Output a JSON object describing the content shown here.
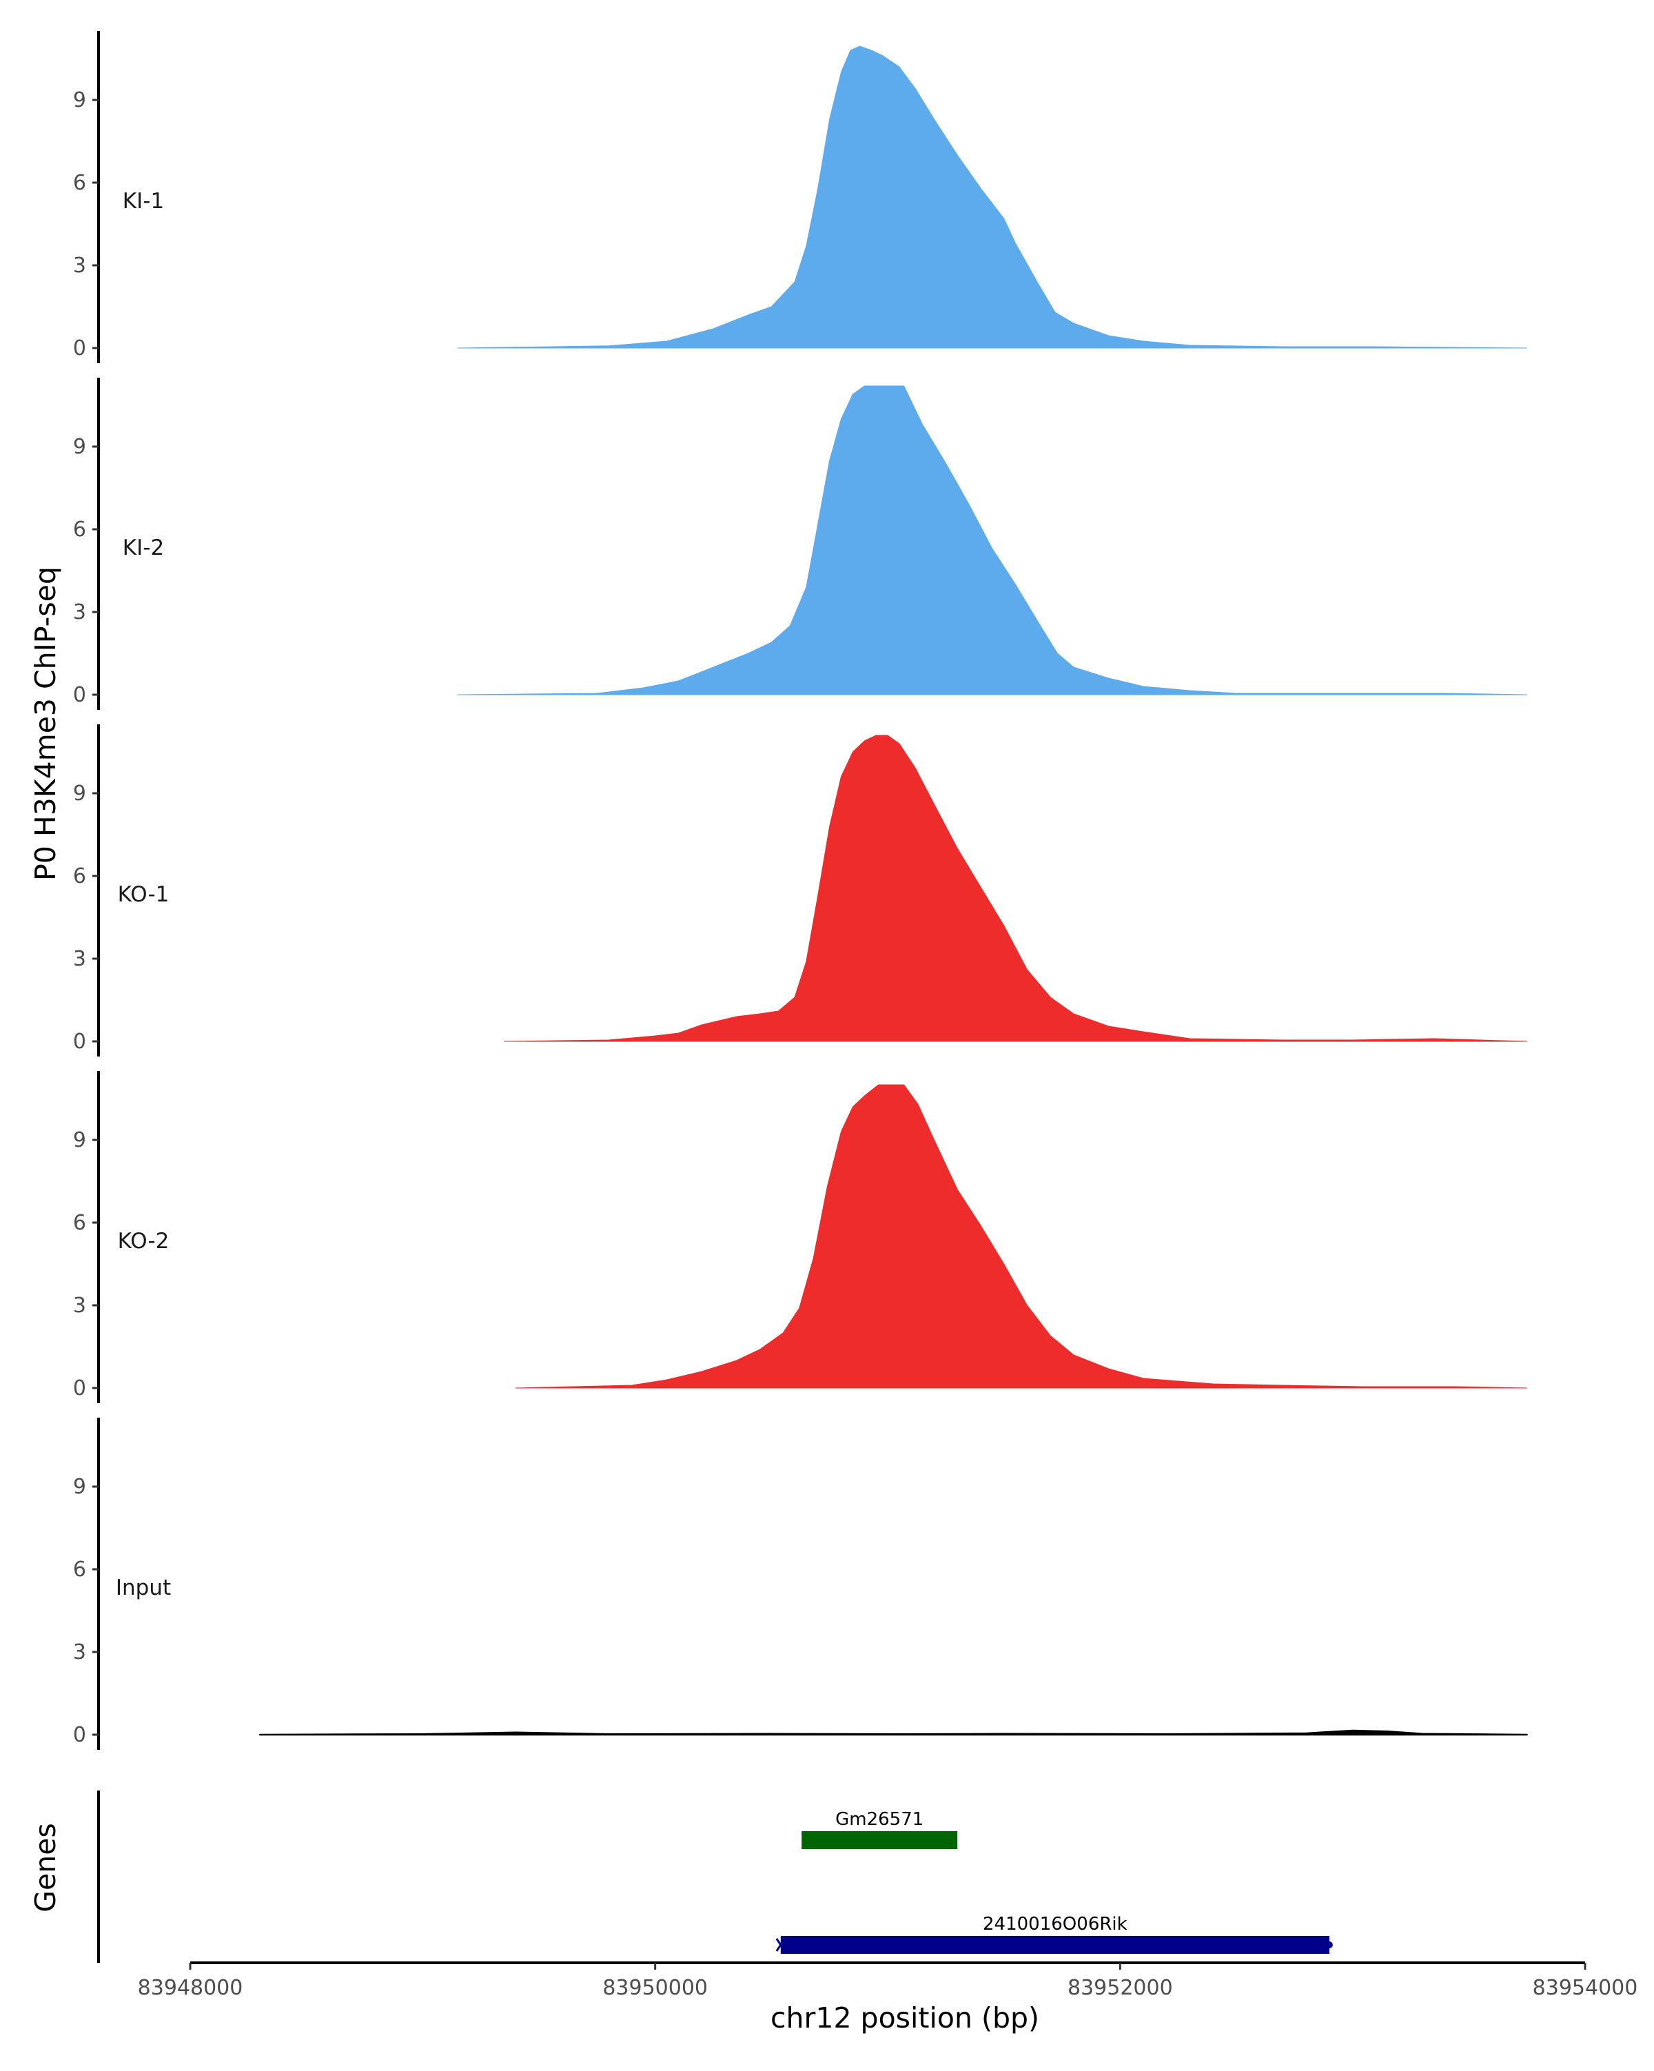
{
  "chart_data": {
    "type": "area",
    "chromosome": "chr12",
    "ylabel": "P0 H3K4me3 ChIP-seq",
    "xlabel": "chr12 position (bp)",
    "genes_label": "Genes",
    "xlim": [
      83948000,
      83954000
    ],
    "x_ticks": [
      83948000,
      83950000,
      83952000,
      83954000
    ],
    "x_tick_labels": [
      "83948000",
      "83950000",
      "83952000",
      "83954000"
    ],
    "ylim": [
      0,
      11.2
    ],
    "y_ticks": [
      0,
      3,
      6,
      9
    ],
    "y_tick_labels": [
      "0",
      "3",
      "6",
      "9"
    ],
    "tracks": [
      {
        "name": "KI-1",
        "color": "#5DABEC",
        "points": [
          [
            83949150,
            0
          ],
          [
            83949800,
            0.08
          ],
          [
            83950050,
            0.25
          ],
          [
            83950250,
            0.7
          ],
          [
            83950400,
            1.2
          ],
          [
            83950500,
            1.5
          ],
          [
            83950600,
            2.4
          ],
          [
            83950650,
            3.7
          ],
          [
            83950700,
            5.8
          ],
          [
            83950750,
            8.3
          ],
          [
            83950800,
            10.0
          ],
          [
            83950840,
            10.8
          ],
          [
            83950880,
            10.95
          ],
          [
            83950930,
            10.8
          ],
          [
            83950980,
            10.6
          ],
          [
            83951050,
            10.2
          ],
          [
            83951120,
            9.4
          ],
          [
            83951200,
            8.3
          ],
          [
            83951300,
            7.0
          ],
          [
            83951400,
            5.8
          ],
          [
            83951500,
            4.7
          ],
          [
            83951550,
            3.8
          ],
          [
            83951650,
            2.3
          ],
          [
            83951720,
            1.3
          ],
          [
            83951800,
            0.9
          ],
          [
            83951950,
            0.45
          ],
          [
            83952100,
            0.25
          ],
          [
            83952300,
            0.1
          ],
          [
            83952700,
            0.05
          ],
          [
            83953100,
            0.05
          ],
          [
            83953500,
            0.02
          ],
          [
            83953750,
            0
          ]
        ]
      },
      {
        "name": "KI-2",
        "color": "#5DABEC",
        "points": [
          [
            83949150,
            0
          ],
          [
            83949750,
            0.05
          ],
          [
            83949950,
            0.25
          ],
          [
            83950100,
            0.5
          ],
          [
            83950250,
            1.0
          ],
          [
            83950400,
            1.5
          ],
          [
            83950500,
            1.9
          ],
          [
            83950580,
            2.5
          ],
          [
            83950650,
            3.9
          ],
          [
            83950700,
            6.2
          ],
          [
            83950750,
            8.5
          ],
          [
            83950800,
            10.0
          ],
          [
            83950850,
            10.9
          ],
          [
            83950900,
            11.2
          ],
          [
            83951070,
            11.2
          ],
          [
            83951150,
            9.8
          ],
          [
            83951250,
            8.4
          ],
          [
            83951350,
            6.9
          ],
          [
            83951450,
            5.3
          ],
          [
            83951550,
            4.0
          ],
          [
            83951650,
            2.6
          ],
          [
            83951730,
            1.5
          ],
          [
            83951800,
            1.0
          ],
          [
            83951950,
            0.6
          ],
          [
            83952100,
            0.3
          ],
          [
            83952300,
            0.15
          ],
          [
            83952500,
            0.05
          ],
          [
            83953000,
            0.05
          ],
          [
            83953400,
            0.05
          ],
          [
            83953750,
            0
          ]
        ]
      },
      {
        "name": "KO-1",
        "color": "#EE2C2C",
        "points": [
          [
            83949350,
            0
          ],
          [
            83949800,
            0.05
          ],
          [
            83950000,
            0.2
          ],
          [
            83950100,
            0.3
          ],
          [
            83950200,
            0.6
          ],
          [
            83950350,
            0.9
          ],
          [
            83950450,
            1.0
          ],
          [
            83950530,
            1.1
          ],
          [
            83950600,
            1.6
          ],
          [
            83950650,
            2.9
          ],
          [
            83950700,
            5.3
          ],
          [
            83950750,
            7.8
          ],
          [
            83950800,
            9.6
          ],
          [
            83950850,
            10.5
          ],
          [
            83950900,
            10.9
          ],
          [
            83950950,
            11.1
          ],
          [
            83951000,
            11.1
          ],
          [
            83951050,
            10.8
          ],
          [
            83951120,
            9.9
          ],
          [
            83951200,
            8.6
          ],
          [
            83951300,
            7.0
          ],
          [
            83951400,
            5.6
          ],
          [
            83951500,
            4.2
          ],
          [
            83951600,
            2.6
          ],
          [
            83951700,
            1.6
          ],
          [
            83951800,
            1.0
          ],
          [
            83951950,
            0.55
          ],
          [
            83952100,
            0.35
          ],
          [
            83952300,
            0.1
          ],
          [
            83952700,
            0.05
          ],
          [
            83953000,
            0.05
          ],
          [
            83953350,
            0.1
          ],
          [
            83953750,
            0
          ]
        ]
      },
      {
        "name": "KO-2",
        "color": "#EE2C2C",
        "points": [
          [
            83949400,
            0
          ],
          [
            83949900,
            0.1
          ],
          [
            83950050,
            0.3
          ],
          [
            83950200,
            0.6
          ],
          [
            83950350,
            1.0
          ],
          [
            83950450,
            1.4
          ],
          [
            83950550,
            2.0
          ],
          [
            83950620,
            2.9
          ],
          [
            83950680,
            4.7
          ],
          [
            83950740,
            7.3
          ],
          [
            83950800,
            9.3
          ],
          [
            83950850,
            10.2
          ],
          [
            83950900,
            10.6
          ],
          [
            83950960,
            11.0
          ],
          [
            83951070,
            11.0
          ],
          [
            83951130,
            10.3
          ],
          [
            83951200,
            9.0
          ],
          [
            83951300,
            7.2
          ],
          [
            83951400,
            5.9
          ],
          [
            83951500,
            4.5
          ],
          [
            83951600,
            3.0
          ],
          [
            83951700,
            1.9
          ],
          [
            83951800,
            1.2
          ],
          [
            83951950,
            0.7
          ],
          [
            83952100,
            0.35
          ],
          [
            83952400,
            0.15
          ],
          [
            83952700,
            0.1
          ],
          [
            83953050,
            0.05
          ],
          [
            83953450,
            0.05
          ],
          [
            83953750,
            0
          ]
        ]
      },
      {
        "name": "Input",
        "color": "#000000",
        "points": [
          [
            83948300,
            0
          ],
          [
            83949000,
            0.02
          ],
          [
            83949400,
            0.08
          ],
          [
            83949800,
            0.02
          ],
          [
            83950500,
            0.03
          ],
          [
            83951000,
            0.02
          ],
          [
            83951500,
            0.03
          ],
          [
            83952200,
            0.02
          ],
          [
            83952800,
            0.05
          ],
          [
            83953000,
            0.15
          ],
          [
            83953150,
            0.12
          ],
          [
            83953300,
            0.03
          ],
          [
            83953750,
            0
          ]
        ]
      }
    ],
    "genes": [
      {
        "name": "Gm26571",
        "start": 83950630,
        "end": 83951300,
        "color": "#006400",
        "strand": ""
      },
      {
        "name": "2410016O06Rik",
        "start": 83950540,
        "end": 83952900,
        "color": "#00008B",
        "strand": "-"
      }
    ]
  }
}
